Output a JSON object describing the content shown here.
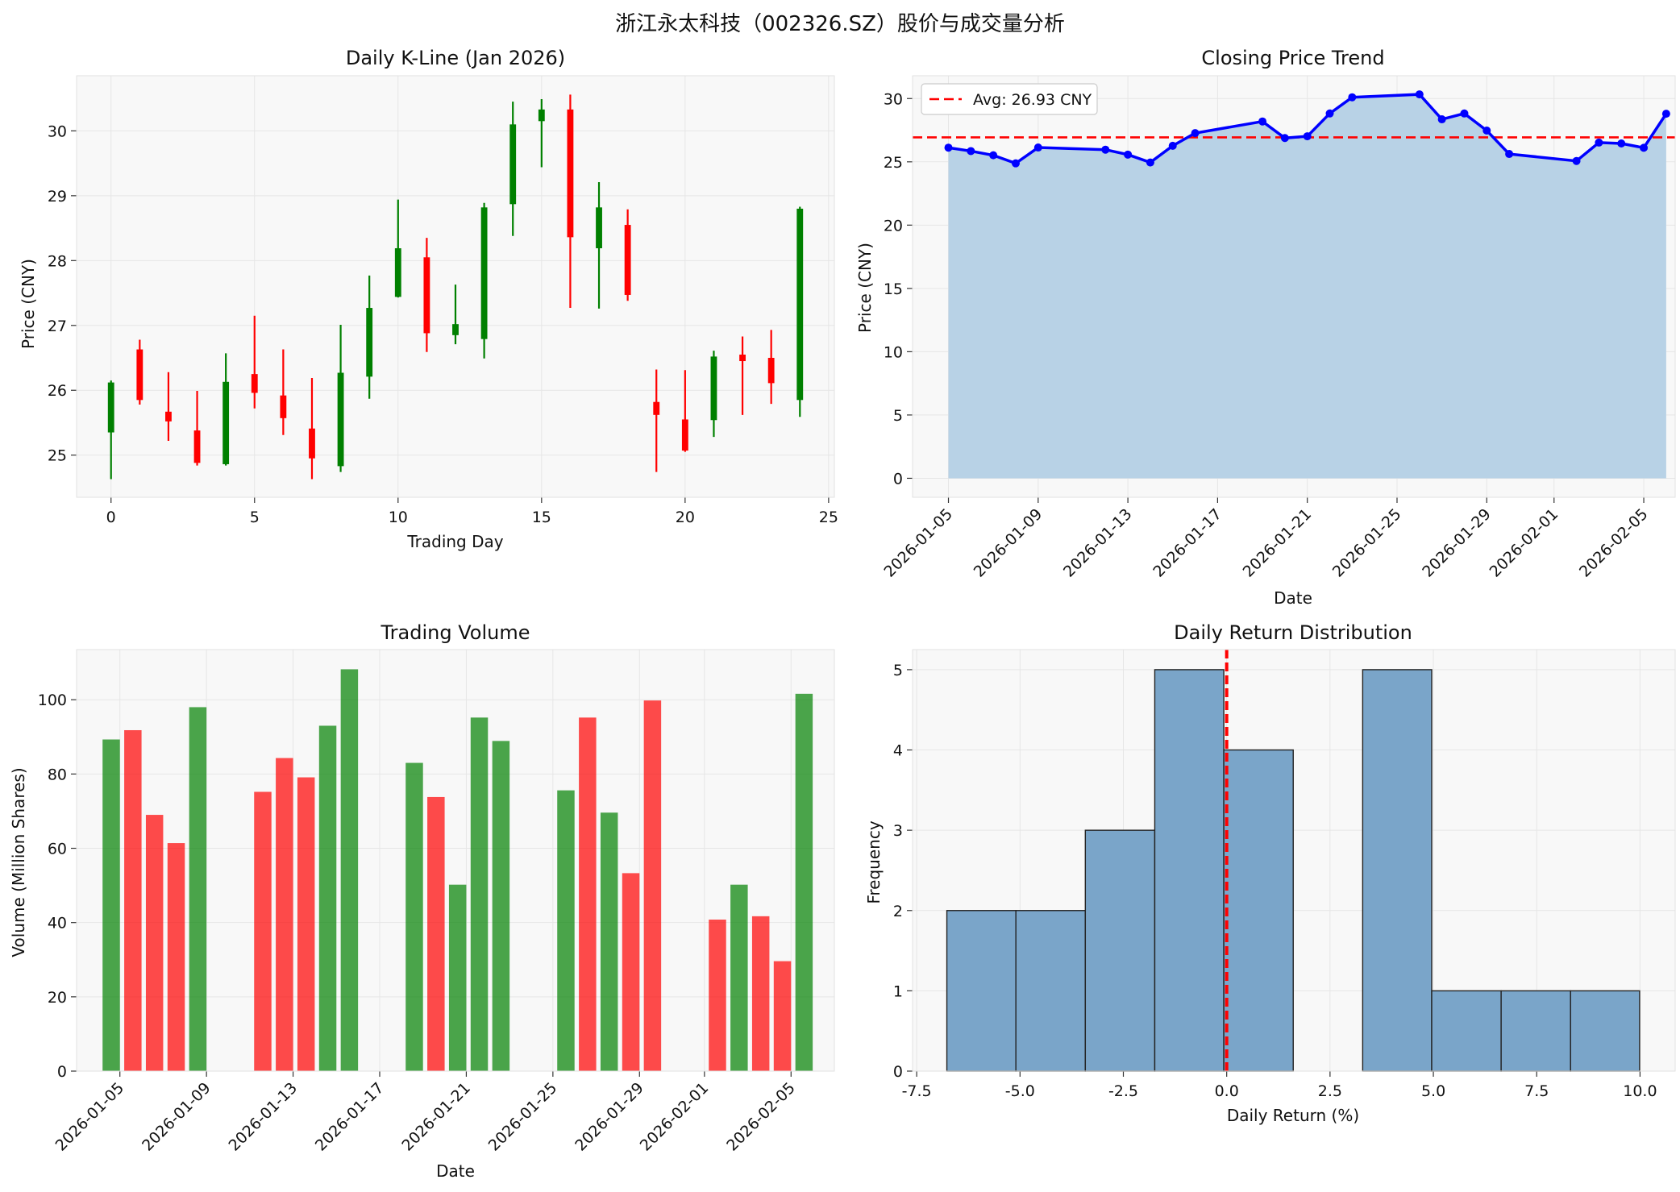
{
  "figure_title": "浙江永太科技（002326.SZ）股价与成交量分析",
  "colors": {
    "up": "#008000",
    "down": "#ff0000",
    "line": "#0000ff",
    "fill": "#b8d2e6",
    "avg": "#ff0000",
    "hist": "#7aa5c9",
    "panel_bg": "#f8f8f8"
  },
  "chart_data": [
    {
      "type": "candlestick",
      "title": "Daily K-Line (Jan 2026)",
      "xlabel": "Trading Day",
      "ylabel": "Price (CNY)",
      "xlim": [
        -1.2,
        25.2
      ],
      "ylim": [
        24.35,
        30.85
      ],
      "xticks": [
        0,
        5,
        10,
        15,
        20,
        25
      ],
      "yticks": [
        25,
        26,
        27,
        28,
        29,
        30
      ],
      "candles": [
        {
          "i": 0,
          "open": 25.35,
          "high": 26.15,
          "low": 24.63,
          "close": 26.12
        },
        {
          "i": 1,
          "open": 26.63,
          "high": 26.78,
          "low": 25.78,
          "close": 25.85
        },
        {
          "i": 2,
          "open": 25.67,
          "high": 26.28,
          "low": 25.22,
          "close": 25.52
        },
        {
          "i": 3,
          "open": 25.38,
          "high": 25.99,
          "low": 24.84,
          "close": 24.88
        },
        {
          "i": 4,
          "open": 24.86,
          "high": 26.57,
          "low": 24.84,
          "close": 26.13
        },
        {
          "i": 5,
          "open": 26.25,
          "high": 27.15,
          "low": 25.72,
          "close": 25.96
        },
        {
          "i": 6,
          "open": 25.92,
          "high": 26.63,
          "low": 25.31,
          "close": 25.57
        },
        {
          "i": 7,
          "open": 25.41,
          "high": 26.19,
          "low": 24.63,
          "close": 24.95
        },
        {
          "i": 8,
          "open": 24.83,
          "high": 27.01,
          "low": 24.74,
          "close": 26.27
        },
        {
          "i": 9,
          "open": 26.21,
          "high": 27.77,
          "low": 25.87,
          "close": 27.27
        },
        {
          "i": 10,
          "open": 27.44,
          "high": 28.94,
          "low": 27.43,
          "close": 28.19
        },
        {
          "i": 11,
          "open": 28.05,
          "high": 28.35,
          "low": 26.59,
          "close": 26.88
        },
        {
          "i": 12,
          "open": 26.85,
          "high": 27.63,
          "low": 26.71,
          "close": 27.02
        },
        {
          "i": 13,
          "open": 26.79,
          "high": 28.89,
          "low": 26.49,
          "close": 28.82
        },
        {
          "i": 14,
          "open": 28.87,
          "high": 30.45,
          "low": 28.38,
          "close": 30.1
        },
        {
          "i": 15,
          "open": 30.15,
          "high": 30.49,
          "low": 29.44,
          "close": 30.33
        },
        {
          "i": 16,
          "open": 30.33,
          "high": 30.56,
          "low": 27.27,
          "close": 28.36
        },
        {
          "i": 17,
          "open": 28.19,
          "high": 29.21,
          "low": 27.26,
          "close": 28.82
        },
        {
          "i": 18,
          "open": 28.55,
          "high": 28.79,
          "low": 27.38,
          "close": 27.47
        },
        {
          "i": 19,
          "open": 25.82,
          "high": 26.32,
          "low": 24.74,
          "close": 25.62
        },
        {
          "i": 20,
          "open": 25.55,
          "high": 26.31,
          "low": 25.05,
          "close": 25.07
        },
        {
          "i": 21,
          "open": 25.54,
          "high": 26.61,
          "low": 25.28,
          "close": 26.52
        },
        {
          "i": 22,
          "open": 26.55,
          "high": 26.83,
          "low": 25.62,
          "close": 26.45
        },
        {
          "i": 23,
          "open": 26.5,
          "high": 26.93,
          "low": 25.79,
          "close": 26.11
        },
        {
          "i": 24,
          "open": 25.85,
          "high": 28.83,
          "low": 25.59,
          "close": 28.8
        }
      ]
    },
    {
      "type": "area",
      "title": "Closing Price Trend",
      "xlabel": "Date",
      "ylabel": "Price (CNY)",
      "xlim": [
        -1.6,
        32.4
      ],
      "ylim": [
        -1.5,
        31.8
      ],
      "yticks": [
        0,
        5,
        10,
        15,
        20,
        25,
        30
      ],
      "xticks": [
        {
          "day": 0,
          "label": "2026-01-05"
        },
        {
          "day": 4,
          "label": "2026-01-09"
        },
        {
          "day": 8,
          "label": "2026-01-13"
        },
        {
          "day": 12,
          "label": "2026-01-17"
        },
        {
          "day": 16,
          "label": "2026-01-21"
        },
        {
          "day": 20,
          "label": "2026-01-25"
        },
        {
          "day": 24,
          "label": "2026-01-29"
        },
        {
          "day": 27,
          "label": "2026-02-01"
        },
        {
          "day": 31,
          "label": "2026-02-05"
        }
      ],
      "points": [
        {
          "day": 0,
          "close": 26.12
        },
        {
          "day": 1,
          "close": 25.85
        },
        {
          "day": 2,
          "close": 25.52
        },
        {
          "day": 3,
          "close": 24.88
        },
        {
          "day": 4,
          "close": 26.13
        },
        {
          "day": 7,
          "close": 25.96
        },
        {
          "day": 8,
          "close": 25.57
        },
        {
          "day": 9,
          "close": 24.95
        },
        {
          "day": 10,
          "close": 26.27
        },
        {
          "day": 11,
          "close": 27.27
        },
        {
          "day": 14,
          "close": 28.19
        },
        {
          "day": 15,
          "close": 26.88
        },
        {
          "day": 16,
          "close": 27.02
        },
        {
          "day": 17,
          "close": 28.82
        },
        {
          "day": 18,
          "close": 30.1
        },
        {
          "day": 21,
          "close": 30.33
        },
        {
          "day": 22,
          "close": 28.36
        },
        {
          "day": 23,
          "close": 28.82
        },
        {
          "day": 24,
          "close": 27.47
        },
        {
          "day": 25,
          "close": 25.62
        },
        {
          "day": 28,
          "close": 25.07
        },
        {
          "day": 29,
          "close": 26.52
        },
        {
          "day": 30,
          "close": 26.45
        },
        {
          "day": 31,
          "close": 26.11
        },
        {
          "day": 32,
          "close": 28.8
        }
      ],
      "avg": 26.93,
      "legend": "Avg: 26.93 CNY",
      "legend_position": "top-left"
    },
    {
      "type": "bar",
      "title": "Trading Volume",
      "xlabel": "Date",
      "ylabel": "Volume (Million Shares)",
      "xlim": [
        -2,
        33
      ],
      "ylim": [
        0,
        113.5
      ],
      "yticks": [
        0,
        20,
        40,
        60,
        80,
        100
      ],
      "xticks": [
        {
          "day": 0,
          "label": "2026-01-05"
        },
        {
          "day": 4,
          "label": "2026-01-09"
        },
        {
          "day": 8,
          "label": "2026-01-13"
        },
        {
          "day": 12,
          "label": "2026-01-17"
        },
        {
          "day": 16,
          "label": "2026-01-21"
        },
        {
          "day": 20,
          "label": "2026-01-25"
        },
        {
          "day": 24,
          "label": "2026-01-29"
        },
        {
          "day": 27,
          "label": "2026-02-01"
        },
        {
          "day": 31,
          "label": "2026-02-05"
        }
      ],
      "bars": [
        {
          "day": -0.4,
          "volume": 89.3,
          "dir": "up"
        },
        {
          "day": 0.6,
          "volume": 91.8,
          "dir": "down"
        },
        {
          "day": 1.6,
          "volume": 69.0,
          "dir": "down"
        },
        {
          "day": 2.6,
          "volume": 61.4,
          "dir": "down"
        },
        {
          "day": 3.6,
          "volume": 98.0,
          "dir": "up"
        },
        {
          "day": 6.6,
          "volume": 75.2,
          "dir": "down"
        },
        {
          "day": 7.6,
          "volume": 84.3,
          "dir": "down"
        },
        {
          "day": 8.6,
          "volume": 79.1,
          "dir": "down"
        },
        {
          "day": 9.6,
          "volume": 93.0,
          "dir": "up"
        },
        {
          "day": 10.6,
          "volume": 108.2,
          "dir": "up"
        },
        {
          "day": 13.6,
          "volume": 83.0,
          "dir": "up"
        },
        {
          "day": 14.6,
          "volume": 73.8,
          "dir": "down"
        },
        {
          "day": 15.6,
          "volume": 50.2,
          "dir": "up"
        },
        {
          "day": 16.6,
          "volume": 95.2,
          "dir": "up"
        },
        {
          "day": 17.6,
          "volume": 88.9,
          "dir": "up"
        },
        {
          "day": 20.6,
          "volume": 75.6,
          "dir": "up"
        },
        {
          "day": 21.6,
          "volume": 95.2,
          "dir": "down"
        },
        {
          "day": 22.6,
          "volume": 69.6,
          "dir": "up"
        },
        {
          "day": 23.6,
          "volume": 53.3,
          "dir": "down"
        },
        {
          "day": 24.6,
          "volume": 99.8,
          "dir": "down"
        },
        {
          "day": 27.6,
          "volume": 40.8,
          "dir": "down"
        },
        {
          "day": 28.6,
          "volume": 50.2,
          "dir": "up"
        },
        {
          "day": 29.6,
          "volume": 41.7,
          "dir": "down"
        },
        {
          "day": 30.6,
          "volume": 29.6,
          "dir": "down"
        },
        {
          "day": 31.6,
          "volume": 101.6,
          "dir": "up"
        }
      ]
    },
    {
      "type": "histogram",
      "title": "Daily Return Distribution",
      "xlabel": "Daily Return (%)",
      "ylabel": "Frequency",
      "xlim": [
        -7.6,
        10.85
      ],
      "ylim": [
        0,
        5.25
      ],
      "xticks": [
        -7.5,
        -5.0,
        -2.5,
        0.0,
        2.5,
        5.0,
        7.5,
        10.0
      ],
      "xtick_labels": [
        "-7.5",
        "-5.0",
        "-2.5",
        "0.0",
        "2.5",
        "5.0",
        "7.5",
        "10.0"
      ],
      "yticks": [
        0,
        1,
        2,
        3,
        4,
        5
      ],
      "bins": [
        {
          "from": -6.77,
          "to": -5.1,
          "count": 2
        },
        {
          "from": -5.1,
          "to": -3.42,
          "count": 2
        },
        {
          "from": -3.42,
          "to": -1.74,
          "count": 3
        },
        {
          "from": -1.74,
          "to": -0.07,
          "count": 5
        },
        {
          "from": -0.07,
          "to": 1.61,
          "count": 4
        },
        {
          "from": 1.61,
          "to": 3.29,
          "count": 0
        },
        {
          "from": 3.29,
          "to": 4.96,
          "count": 5
        },
        {
          "from": 4.96,
          "to": 6.64,
          "count": 1
        },
        {
          "from": 6.64,
          "to": 8.32,
          "count": 1
        },
        {
          "from": 8.32,
          "to": 9.99,
          "count": 1
        }
      ],
      "vline": 0.0
    }
  ]
}
